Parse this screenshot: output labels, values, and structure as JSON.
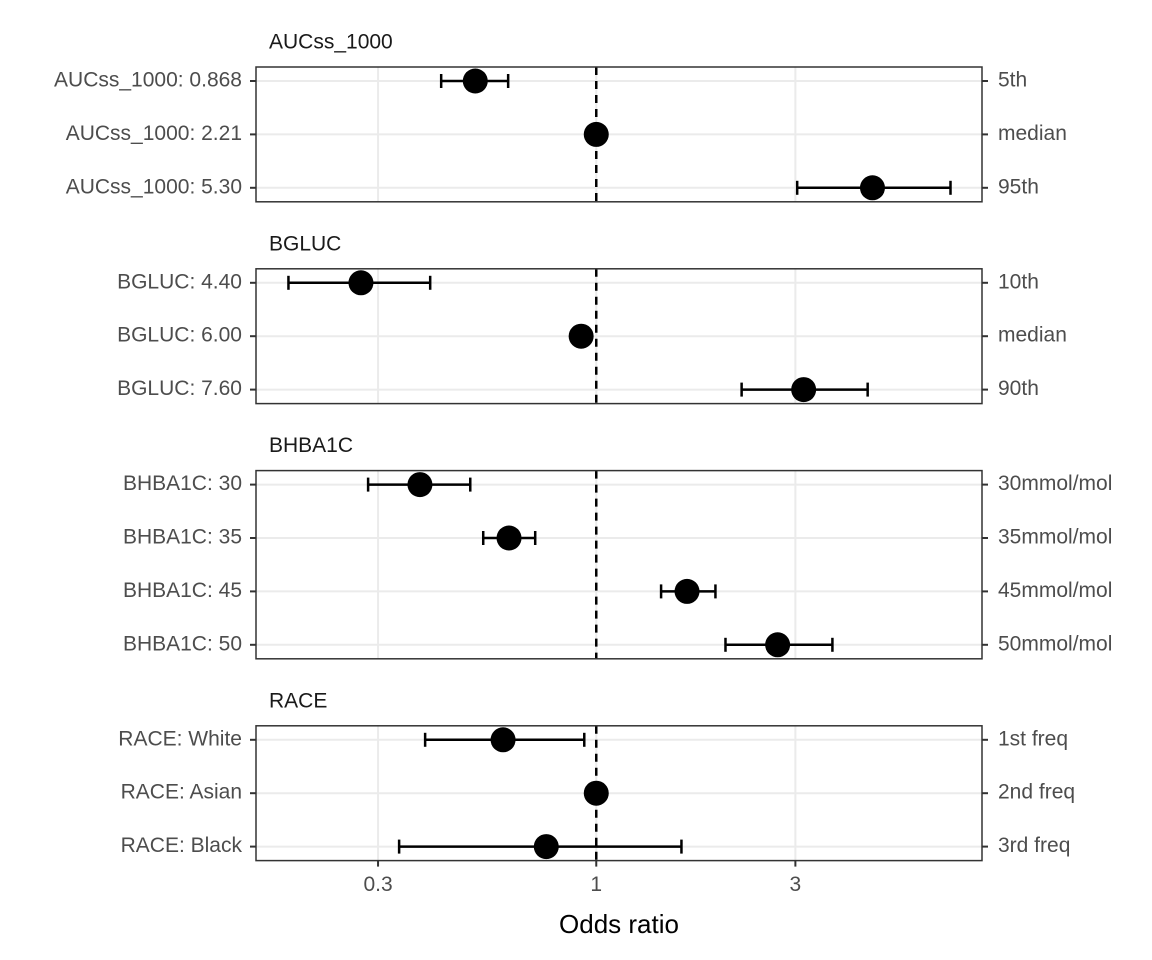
{
  "chart_data": {
    "type": "forest",
    "x_label": "Odds ratio",
    "log_x": true,
    "xlim": [
      0.153,
      8.4
    ],
    "xticks": [
      0.3,
      1,
      3
    ],
    "ref_line": 1,
    "grid": true,
    "color": "#000000",
    "panels": [
      {
        "title": "AUCss_1000",
        "rows": [
          {
            "label": "AUCss_1000: 0.868",
            "right_label": "5th",
            "value": 0.513,
            "lower": 0.425,
            "upper": 0.615
          },
          {
            "label": "AUCss_1000: 2.21",
            "right_label": "median",
            "value": 1,
            "lower": null,
            "upper": null
          },
          {
            "label": "AUCss_1000: 5.30",
            "right_label": "95th",
            "value": 4.59,
            "lower": 3.03,
            "upper": 7.06
          }
        ]
      },
      {
        "title": "BGLUC",
        "rows": [
          {
            "label": "BGLUC: 4.40",
            "right_label": "10th",
            "value": 0.273,
            "lower": 0.183,
            "upper": 0.4
          },
          {
            "label": "BGLUC: 6.00",
            "right_label": "median",
            "value": 0.92,
            "lower": null,
            "upper": null
          },
          {
            "label": "BGLUC: 7.60",
            "right_label": "90th",
            "value": 3.14,
            "lower": 2.23,
            "upper": 4.47
          }
        ]
      },
      {
        "title": "BHBA1C",
        "rows": [
          {
            "label": "BHBA1C: 30",
            "right_label": "30mmol/mol",
            "value": 0.378,
            "lower": 0.284,
            "upper": 0.499
          },
          {
            "label": "BHBA1C: 35",
            "right_label": "35mmol/mol",
            "value": 0.618,
            "lower": 0.536,
            "upper": 0.714
          },
          {
            "label": "BHBA1C: 45",
            "right_label": "45mmol/mol",
            "value": 1.65,
            "lower": 1.43,
            "upper": 1.93
          },
          {
            "label": "BHBA1C: 50",
            "right_label": "50mmol/mol",
            "value": 2.72,
            "lower": 2.04,
            "upper": 3.68
          }
        ]
      },
      {
        "title": "RACE",
        "rows": [
          {
            "label": "RACE: White",
            "right_label": "1st freq",
            "value": 0.598,
            "lower": 0.389,
            "upper": 0.936
          },
          {
            "label": "RACE: Asian",
            "right_label": "2nd freq",
            "value": 1,
            "lower": null,
            "upper": null
          },
          {
            "label": "RACE: Black",
            "right_label": "3rd freq",
            "value": 0.759,
            "lower": 0.337,
            "upper": 1.6
          }
        ]
      }
    ]
  }
}
